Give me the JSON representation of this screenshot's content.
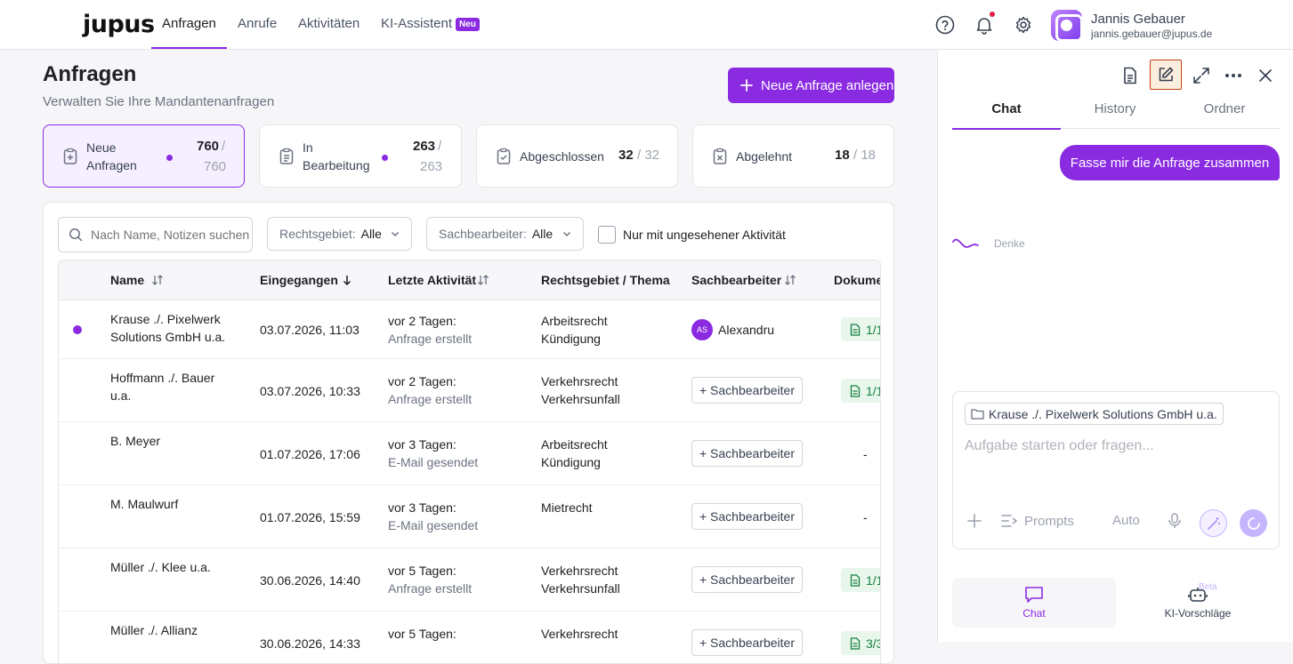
{
  "brand": {
    "logo_text": "jupus",
    "accent": "#8a2be2"
  },
  "nav": {
    "items": [
      {
        "label": "Anfragen",
        "active": true
      },
      {
        "label": "Anrufe",
        "active": false
      },
      {
        "label": "Aktivitäten",
        "active": false
      },
      {
        "label": "KI-Assistent",
        "active": false,
        "badge": "Neu"
      }
    ],
    "icons": [
      "help-icon",
      "bell-icon",
      "gear-icon"
    ]
  },
  "user": {
    "name": "Jannis Gebauer",
    "email": "jannis.gebauer@jupus.de"
  },
  "page": {
    "title": "Anfragen",
    "subtitle": "Verwalten Sie Ihre Mandantenanfragen",
    "new_button": "Neue Anfrage anlegen"
  },
  "stats": [
    {
      "line1": "Neue",
      "line2": "Anfragen",
      "value": "760",
      "total": "/",
      "total2": "760",
      "active": true
    },
    {
      "line1": "In",
      "line2": "Bearbeitung",
      "value": "263",
      "total": "/",
      "total2": "263",
      "active": false
    },
    {
      "line1": "Abgeschlossen",
      "value": "32",
      "total": "/ 32",
      "active": false
    },
    {
      "line1": "Abgelehnt",
      "value": "18",
      "total": "/ 18",
      "active": false
    }
  ],
  "filters": {
    "search_placeholder": "Nach Name, Notizen suchen",
    "rechtsgebiet_label": "Rechtsgebiet:",
    "rechtsgebiet_value": "Alle",
    "sachbearbeiter_label": "Sachbearbeiter:",
    "sachbearbeiter_value": "Alle",
    "unseen_label": "Nur mit ungesehener Aktivität"
  },
  "table": {
    "headers": [
      "Name",
      "Eingegangen",
      "Letzte Aktivität",
      "Rechtsgebiet / Thema",
      "Sachbearbeiter",
      "Dokumente"
    ],
    "assign_label": "+ Sachbearbeiter",
    "rows": [
      {
        "name1": "Krause ./. Pixelwerk",
        "name2": "Solutions GmbH u.a.",
        "date": "03.07.2026, 11:03",
        "act1": "vor 2 Tagen:",
        "act2": "Anfrage erstellt",
        "area1": "Arbeitsrecht",
        "area2": "Kündigung",
        "assignee_initials": "AS",
        "assignee": "Alexandru",
        "docs": "1/1",
        "unread": true
      },
      {
        "name1": "Hoffmann ./. Bauer",
        "name2": "u.a.",
        "date": "03.07.2026, 10:33",
        "act1": "vor 2 Tagen:",
        "act2": "Anfrage erstellt",
        "area1": "Verkehrsrecht",
        "area2": "Verkehrsunfall",
        "docs": "1/1",
        "unread": false
      },
      {
        "name1": "B. Meyer",
        "name2": "",
        "date": "01.07.2026, 17:06",
        "act1": "vor 3 Tagen:",
        "act2": "E-Mail gesendet",
        "area1": "Arbeitsrecht",
        "area2": "Kündigung",
        "docs": "-",
        "unread": false
      },
      {
        "name1": "M. Maulwurf",
        "name2": "",
        "date": "01.07.2026, 15:59",
        "act1": "vor 3 Tagen:",
        "act2": "E-Mail gesendet",
        "area1": "Mietrecht",
        "area2": "",
        "docs": "-",
        "unread": false
      },
      {
        "name1": "Müller ./. Klee u.a.",
        "name2": "",
        "date": "30.06.2026, 14:40",
        "act1": "vor 5 Tagen:",
        "act2": "Anfrage erstellt",
        "area1": "Verkehrsrecht",
        "area2": "Verkehrsunfall",
        "docs": "1/1",
        "unread": false
      },
      {
        "name1": "Müller ./. Allianz",
        "name2": "",
        "date": "30.06.2026, 14:33",
        "act1": "vor 5 Tagen:",
        "act2": "",
        "area1": "Verkehrsrecht",
        "area2": "",
        "docs": "3/3",
        "unread": false
      }
    ]
  },
  "panel": {
    "tabs": [
      "Chat",
      "History",
      "Ordner"
    ],
    "user_message": "Fasse mir die Anfrage zusammen",
    "thinking": "Denke",
    "context_chip": "Krause ./. Pixelwerk Solutions GmbH u.a.",
    "composer_placeholder": "Aufgabe starten oder fragen...",
    "prompts_label": "Prompts",
    "auto_label": "Auto",
    "bottom_nav": [
      {
        "label": "Chat",
        "active": true
      },
      {
        "label": "KI-Vorschläge",
        "badge": "Beta",
        "active": false
      }
    ]
  }
}
